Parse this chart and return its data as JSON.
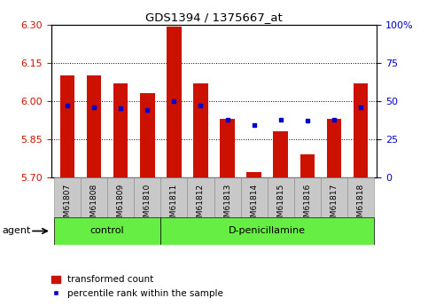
{
  "title": "GDS1394 / 1375667_at",
  "samples": [
    "GSM61807",
    "GSM61808",
    "GSM61809",
    "GSM61810",
    "GSM61811",
    "GSM61812",
    "GSM61813",
    "GSM61814",
    "GSM61815",
    "GSM61816",
    "GSM61817",
    "GSM61818"
  ],
  "transformed_count": [
    6.1,
    6.1,
    6.07,
    6.03,
    6.29,
    6.07,
    5.93,
    5.72,
    5.88,
    5.79,
    5.93,
    6.07
  ],
  "percentile_rank": [
    47,
    46,
    45,
    44,
    50,
    47,
    38,
    34,
    38,
    37,
    38,
    46
  ],
  "groups": [
    {
      "label": "control",
      "start": 0,
      "end": 3
    },
    {
      "label": "D-penicillamine",
      "start": 4,
      "end": 11
    }
  ],
  "ylim_left": [
    5.7,
    6.3
  ],
  "ylim_right": [
    0,
    100
  ],
  "yticks_left": [
    5.7,
    5.85,
    6.0,
    6.15,
    6.3
  ],
  "yticks_right": [
    0,
    25,
    50,
    75,
    100
  ],
  "ytick_labels_right": [
    "0",
    "25",
    "50",
    "75",
    "100%"
  ],
  "bar_color": "#cc1100",
  "dot_color": "#0000cc",
  "bar_width": 0.55,
  "tick_color_left": "#cc1100",
  "tick_color_right": "#0000cc",
  "group_bg_color": "#66ee44",
  "sample_tick_bg": "#cccccc",
  "agent_label": "agent",
  "legend_items": [
    {
      "color": "#cc1100",
      "label": "transformed count"
    },
    {
      "color": "#0000cc",
      "label": "percentile rank within the sample"
    }
  ]
}
